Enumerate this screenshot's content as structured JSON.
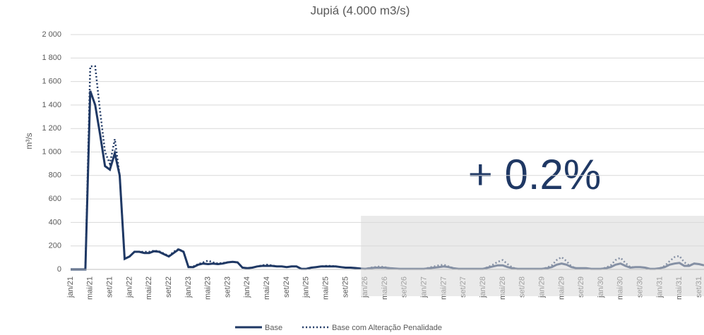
{
  "chart_data": {
    "type": "line",
    "title": "Jupiá (4.000 m3/s)",
    "y_label": "m³/s",
    "annotation": "+ 0.2%",
    "categories": [
      "jan/21",
      null,
      null,
      null,
      "mai/21",
      null,
      null,
      null,
      "set/21",
      null,
      null,
      null,
      "jan/22",
      null,
      null,
      null,
      "mai/22",
      null,
      null,
      null,
      "set/22",
      null,
      null,
      null,
      "jan/23",
      null,
      null,
      null,
      "mai/23",
      null,
      null,
      null,
      "set/23",
      null,
      null,
      null,
      "jan/24",
      null,
      null,
      null,
      "mai/24",
      null,
      null,
      null,
      "set/24",
      null,
      null,
      null,
      "jan/25",
      null,
      null,
      null,
      "mai/25",
      null,
      null,
      null,
      "set/25",
      null,
      null,
      null,
      "jan/26",
      null,
      null,
      null,
      "mai/26",
      null,
      null,
      null,
      "set/26",
      null,
      null,
      null,
      "jan/27",
      null,
      null,
      null,
      "mai/27",
      null,
      null,
      null,
      "set/27",
      null,
      null,
      null,
      "jan/28",
      null,
      null,
      null,
      "mai/28",
      null,
      null,
      null,
      "set/28",
      null,
      null,
      null,
      "jan/29",
      null,
      null,
      null,
      "mai/29",
      null,
      null,
      null,
      "set/29",
      null,
      null,
      null,
      "jan/30",
      null,
      null,
      null,
      "mai/30",
      null,
      null,
      null,
      "set/30",
      null,
      null,
      null,
      "jan/31",
      null,
      null,
      null,
      "mai/31",
      null,
      null,
      null,
      "set/31",
      null
    ],
    "series": [
      {
        "name": "Base",
        "color": "#1f3864",
        "dash": false,
        "values": [
          0,
          0,
          0,
          0,
          1520,
          1400,
          1150,
          880,
          850,
          990,
          800,
          90,
          110,
          150,
          150,
          140,
          140,
          155,
          150,
          130,
          110,
          140,
          170,
          150,
          20,
          20,
          40,
          50,
          45,
          50,
          45,
          50,
          60,
          65,
          60,
          15,
          10,
          15,
          25,
          30,
          30,
          30,
          25,
          25,
          20,
          25,
          25,
          5,
          5,
          15,
          20,
          25,
          25,
          25,
          25,
          20,
          15,
          15,
          12,
          8,
          5,
          10,
          15,
          15,
          15,
          10,
          8,
          5,
          5,
          5,
          5,
          5,
          5,
          10,
          15,
          20,
          25,
          20,
          10,
          5,
          5,
          5,
          5,
          5,
          5,
          15,
          25,
          35,
          35,
          20,
          10,
          5,
          5,
          5,
          5,
          5,
          5,
          10,
          20,
          40,
          50,
          40,
          20,
          10,
          10,
          10,
          5,
          5,
          5,
          10,
          20,
          40,
          50,
          30,
          15,
          20,
          20,
          15,
          5,
          5,
          10,
          20,
          40,
          50,
          55,
          30,
          30,
          50,
          45,
          35
        ]
      },
      {
        "name": "Base com Alteração Penalidade",
        "color": "#1f3864",
        "dash": true,
        "values": [
          0,
          0,
          0,
          0,
          1730,
          1730,
          1350,
          1000,
          900,
          1110,
          800,
          90,
          110,
          150,
          150,
          150,
          150,
          160,
          155,
          135,
          115,
          150,
          175,
          150,
          20,
          25,
          45,
          60,
          75,
          60,
          50,
          55,
          60,
          65,
          60,
          15,
          10,
          15,
          25,
          35,
          40,
          35,
          25,
          25,
          20,
          25,
          25,
          5,
          5,
          15,
          20,
          25,
          30,
          30,
          25,
          20,
          15,
          15,
          12,
          8,
          5,
          15,
          20,
          25,
          20,
          10,
          8,
          5,
          5,
          5,
          5,
          5,
          5,
          15,
          25,
          35,
          40,
          25,
          10,
          5,
          5,
          5,
          5,
          5,
          5,
          20,
          40,
          65,
          80,
          45,
          15,
          5,
          5,
          5,
          5,
          5,
          5,
          15,
          35,
          80,
          105,
          70,
          25,
          10,
          10,
          10,
          5,
          5,
          5,
          15,
          35,
          80,
          100,
          55,
          20,
          20,
          20,
          15,
          5,
          5,
          10,
          30,
          70,
          105,
          115,
          60,
          35,
          50,
          45,
          35
        ]
      }
    ],
    "ylim": [
      0,
      2000
    ],
    "yticks": [
      0,
      200,
      400,
      600,
      800,
      {
        "value": 1000,
        "label": "1 000"
      },
      {
        "value": 1200,
        "label": "1 200"
      },
      {
        "value": 1400,
        "label": "1 400"
      },
      {
        "value": 1600,
        "label": "1 600"
      },
      {
        "value": 1800,
        "label": "1 800"
      },
      {
        "value": 2000,
        "label": "2 000"
      }
    ],
    "grid": true
  }
}
